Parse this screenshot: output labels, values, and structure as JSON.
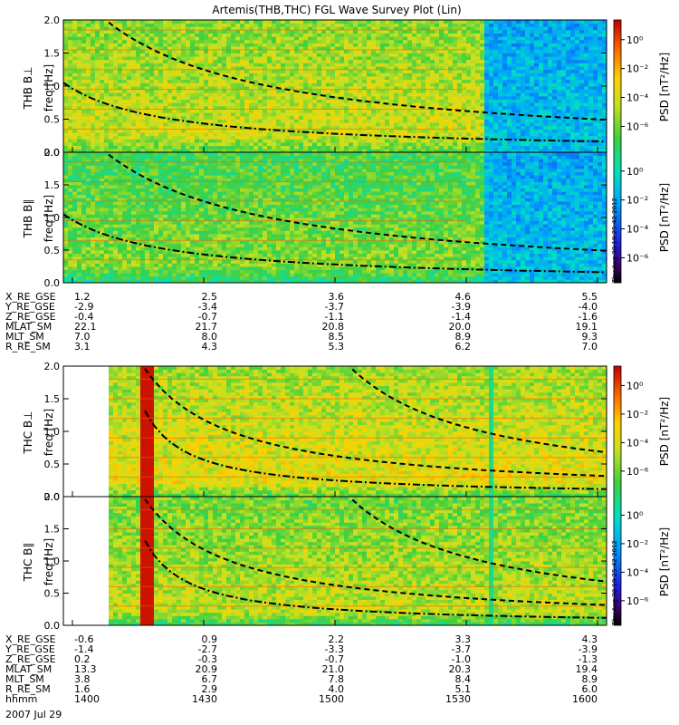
{
  "chart_data": {
    "type": "heatmap",
    "title": "Artemis(THB,THC) FGL Wave Survey Plot (Lin)",
    "colorbar": {
      "label": "PSD [nT²/Hz]",
      "scale": "log",
      "range": [
        1e-07,
        10.0
      ],
      "ticks": [
        "10⁰",
        "10⁻²",
        "10⁻⁴",
        "10⁻⁶"
      ]
    },
    "timestamp": "Thu Aug 30 19:25:42 2012",
    "groups": [
      {
        "id": "thb",
        "panels": [
          {
            "id": "thb-bperp",
            "ylabel": "THB B⊥",
            "yunit": "freq [Hz]",
            "ylim": [
              0,
              2.0
            ],
            "yticks": [
              "0.0",
              "0.5",
              "1.0",
              "1.5",
              "2.0"
            ]
          },
          {
            "id": "thb-bpar",
            "ylabel": "THB B∥",
            "yunit": "freq [Hz]",
            "ylim": [
              0,
              2.0
            ],
            "yticks": [
              "0.0",
              "0.5",
              "1.0",
              "1.5",
              "2.0"
            ]
          }
        ],
        "ephemeris": {
          "labels": [
            "X_RE_GSE",
            "Y_RE_GSE",
            "Z_RE_GSE",
            "MLAT_SM",
            "MLT_SM",
            "R_RE_SM"
          ],
          "rows": [
            [
              "1.2",
              "2.5",
              "3.6",
              "4.6",
              "5.5"
            ],
            [
              "-2.9",
              "-3.4",
              "-3.7",
              "-3.9",
              "-4.0"
            ],
            [
              "-0.4",
              "-0.7",
              "-1.1",
              "-1.4",
              "-1.6"
            ],
            [
              "22.1",
              "21.7",
              "20.8",
              "20.0",
              "19.1"
            ],
            [
              "7.0",
              "8.0",
              "8.5",
              "8.9",
              "9.3"
            ],
            [
              "3.1",
              "4.3",
              "5.3",
              "6.2",
              "7.0"
            ]
          ]
        }
      },
      {
        "id": "thc",
        "panels": [
          {
            "id": "thc-bperp",
            "ylabel": "THC B⊥",
            "yunit": "freq [Hz]",
            "ylim": [
              0,
              2.0
            ],
            "yticks": [
              "0.0",
              "0.5",
              "1.0",
              "1.5",
              "2.0"
            ]
          },
          {
            "id": "thc-bpar",
            "ylabel": "THC B∥",
            "yunit": "freq [Hz]",
            "ylim": [
              0,
              2.0
            ],
            "yticks": [
              "0.0",
              "0.5",
              "1.0",
              "1.5",
              "2.0"
            ]
          }
        ],
        "ephemeris": {
          "labels": [
            "X_RE_GSE",
            "Y_RE_GSE",
            "Z_RE_GSE",
            "MLAT_SM",
            "MLT_SM",
            "R_RE_SM",
            "hhmm"
          ],
          "rows": [
            [
              "-0.6",
              "0.9",
              "2.2",
              "3.3",
              "4.3"
            ],
            [
              "-1.4",
              "-2.7",
              "-3.3",
              "-3.7",
              "-3.9"
            ],
            [
              "0.2",
              "-0.3",
              "-0.7",
              "-1.0",
              "-1.3"
            ],
            [
              "13.3",
              "20.9",
              "21.0",
              "20.3",
              "19.4"
            ],
            [
              "3.8",
              "6.7",
              "7.8",
              "8.4",
              "8.9"
            ],
            [
              "1.6",
              "2.9",
              "4.0",
              "5.1",
              "6.0"
            ],
            [
              "1400",
              "1430",
              "1500",
              "1530",
              "1600"
            ]
          ]
        }
      }
    ],
    "date": "2007 Jul 29"
  }
}
